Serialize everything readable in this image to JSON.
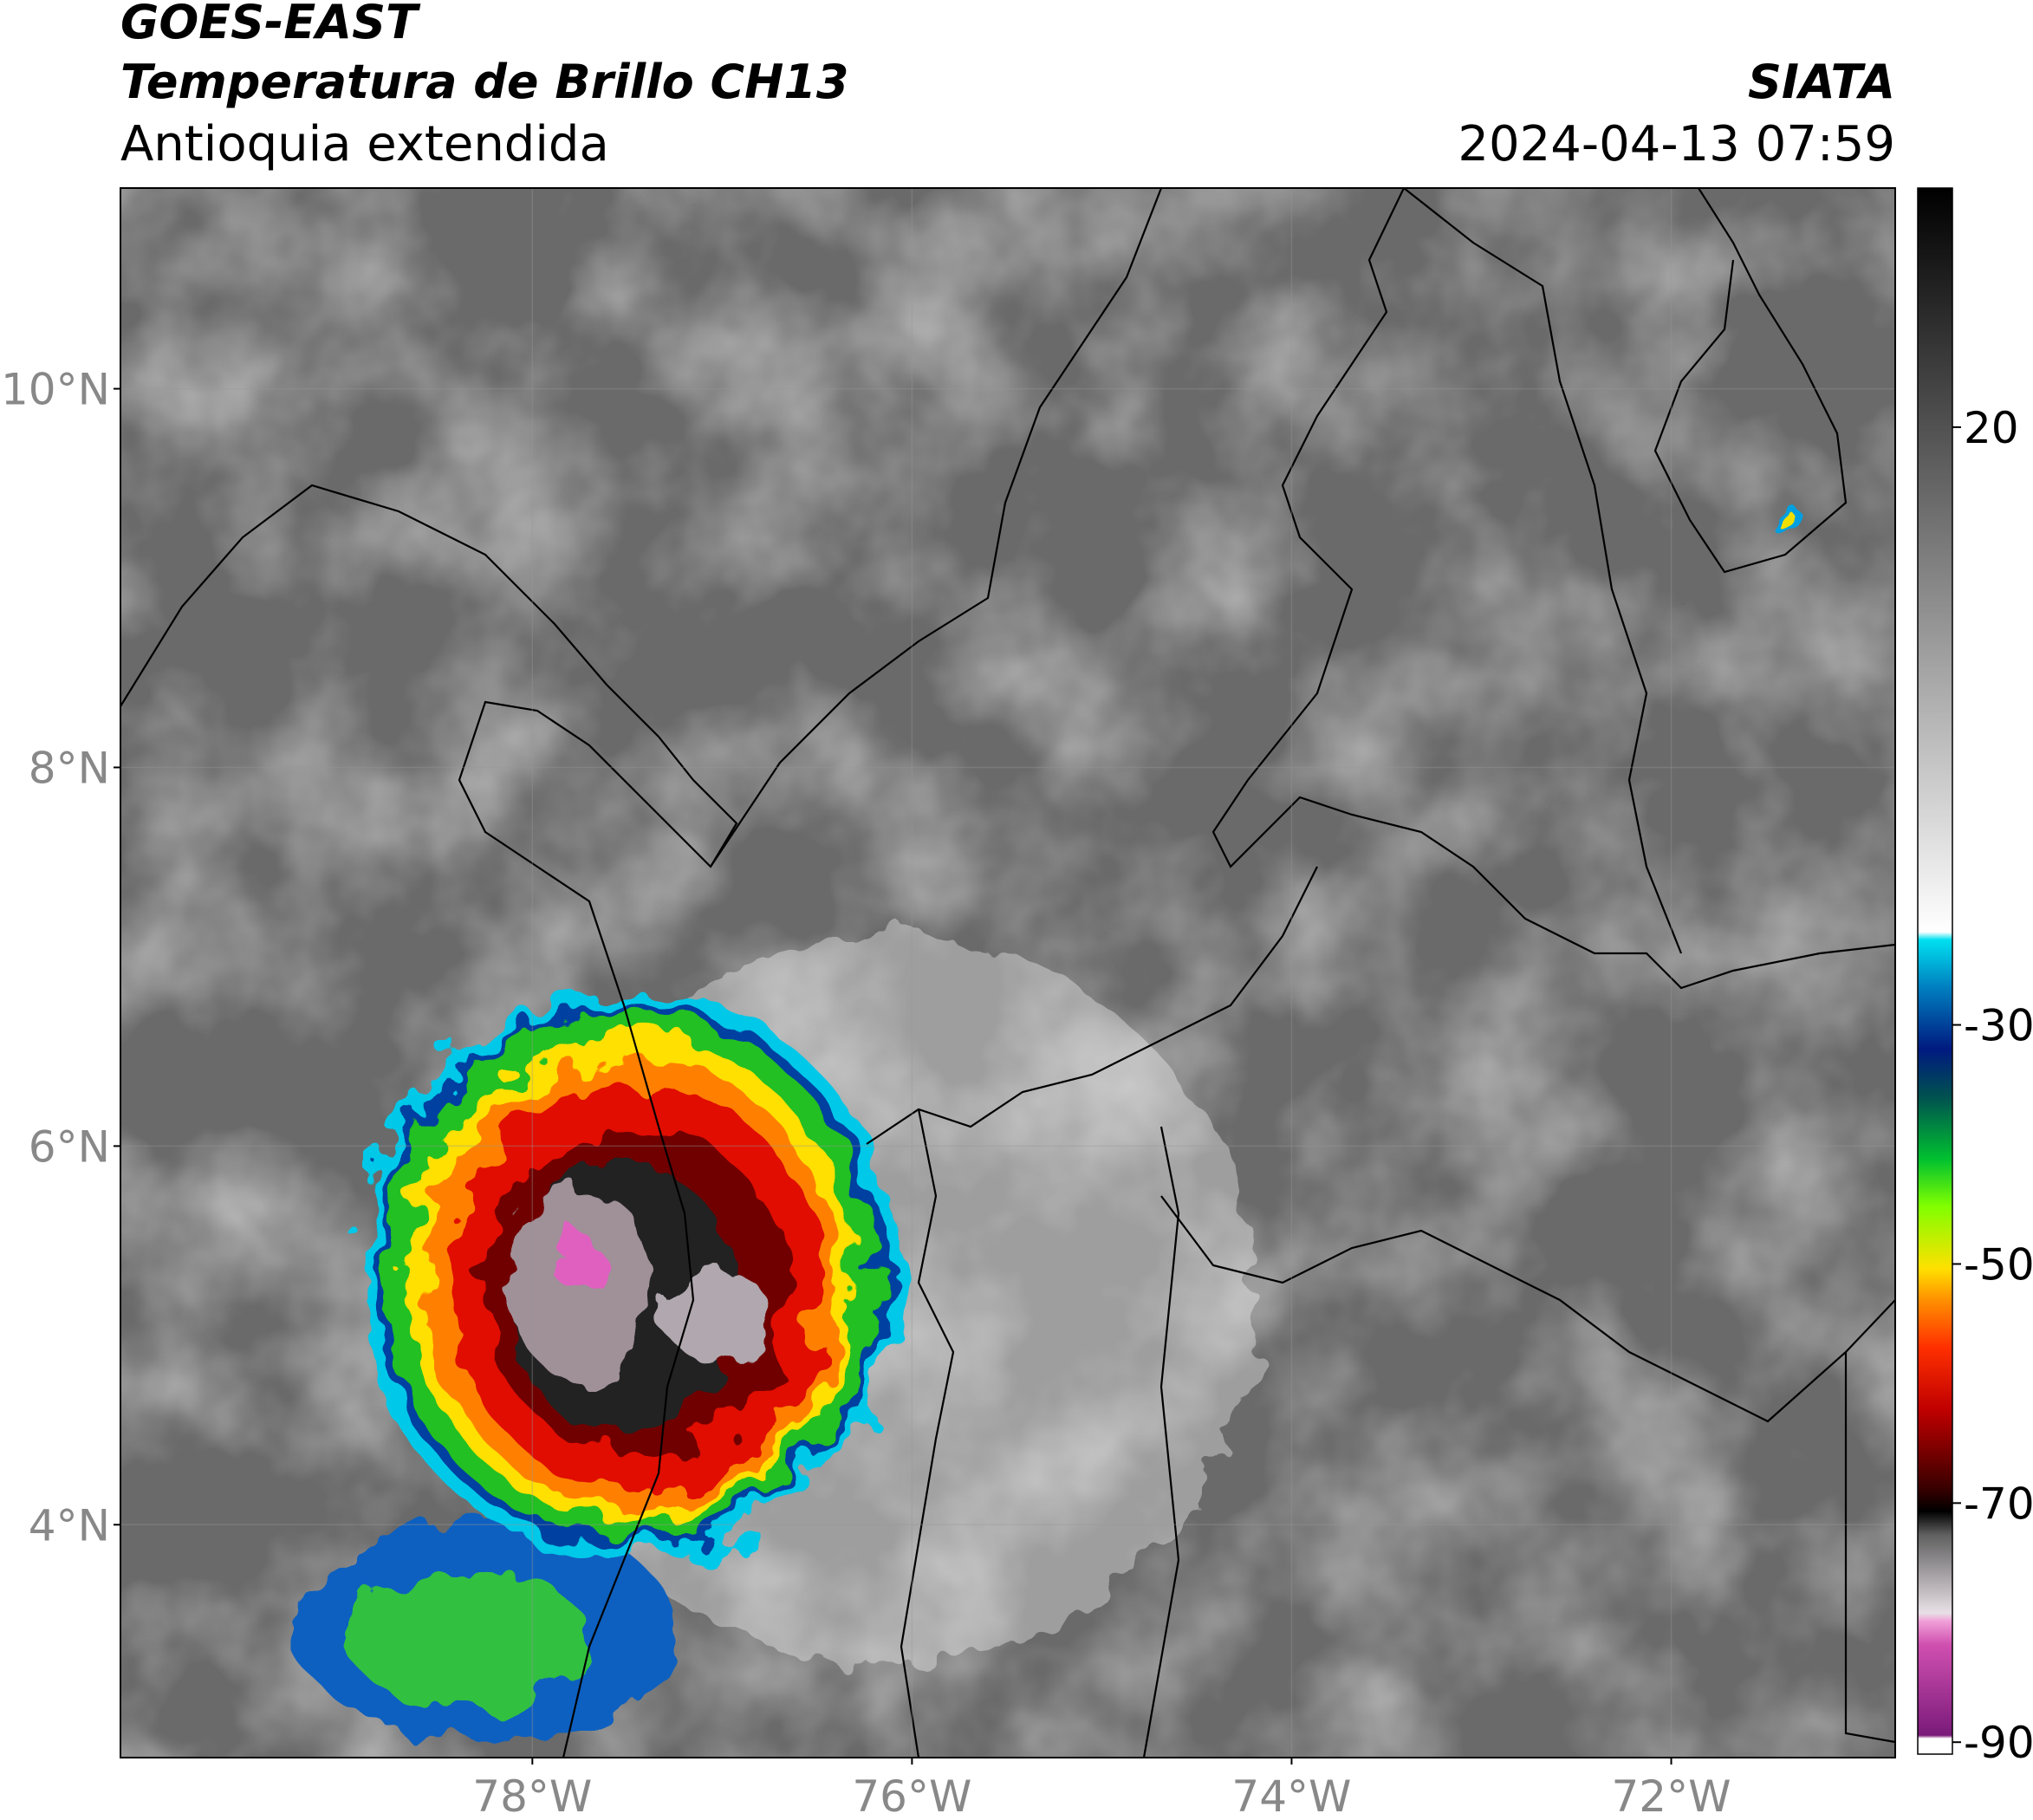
{
  "header": {
    "title_line1": "GOES-EAST",
    "title_line2": "Temperatura de Brillo CH13",
    "subtitle": "Antioquia extendida",
    "source": "SIATA",
    "datetime": "2024-04-13 07:59"
  },
  "map": {
    "xlim": [
      -80.17,
      -70.82
    ],
    "ylim": [
      2.77,
      11.06
    ],
    "xticks": [
      {
        "value": -78,
        "label": "78°W"
      },
      {
        "value": -76,
        "label": "76°W"
      },
      {
        "value": -74,
        "label": "74°W"
      },
      {
        "value": -72,
        "label": "72°W"
      }
    ],
    "yticks": [
      {
        "value": 4,
        "label": "4°N"
      },
      {
        "value": 6,
        "label": "6°N"
      },
      {
        "value": 8,
        "label": "8°N"
      },
      {
        "value": 10,
        "label": "10°N"
      }
    ],
    "grid": true
  },
  "colorbar": {
    "lim": [
      -91,
      40
    ],
    "ticks": [
      -90,
      -70,
      -50,
      -30,
      20
    ]
  }
}
